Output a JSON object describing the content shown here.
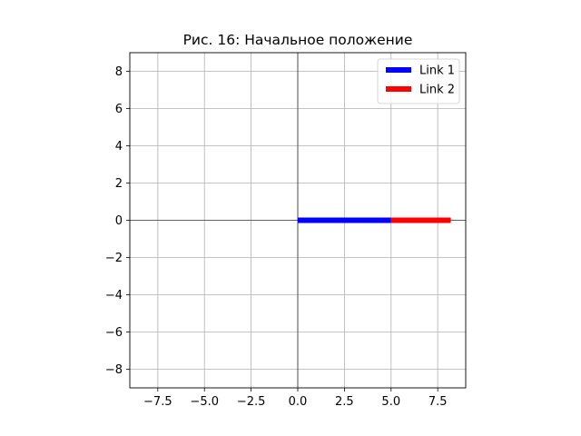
{
  "chart_data": {
    "type": "line",
    "title": "Рис. 16: Начальное положение",
    "xlabel": "",
    "ylabel": "",
    "xlim": [
      -9,
      9
    ],
    "ylim": [
      -9,
      9
    ],
    "x_ticks": [
      -7.5,
      -5.0,
      -2.5,
      0.0,
      2.5,
      5.0,
      7.5
    ],
    "x_tick_labels": [
      "−7.5",
      "−5.0",
      "−2.5",
      "0.0",
      "2.5",
      "5.0",
      "7.5"
    ],
    "y_ticks": [
      -8,
      -6,
      -4,
      -2,
      0,
      2,
      4,
      6,
      8
    ],
    "y_tick_labels": [
      "−8",
      "−6",
      "−4",
      "−2",
      "0",
      "2",
      "4",
      "6",
      "8"
    ],
    "grid": true,
    "axes_lines": true,
    "legend_position": "top-right",
    "series": [
      {
        "name": "Link 1",
        "color": "#0000ff",
        "x": [
          0,
          5
        ],
        "y": [
          0,
          0
        ]
      },
      {
        "name": "Link 2",
        "color": "#ff0000",
        "x": [
          5,
          8.2
        ],
        "y": [
          0,
          0
        ]
      }
    ]
  }
}
